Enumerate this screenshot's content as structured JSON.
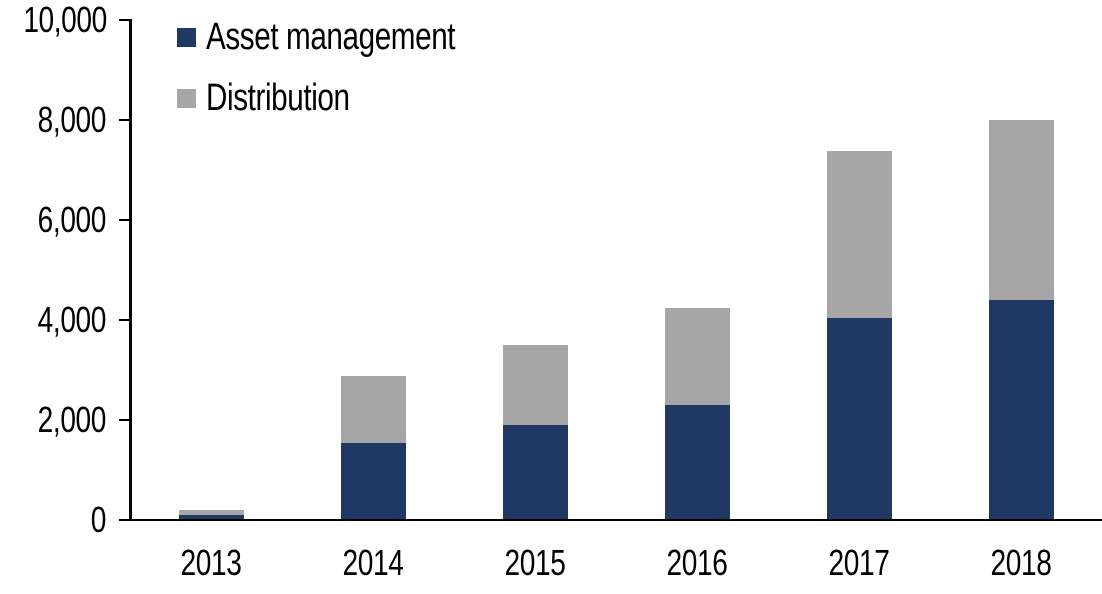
{
  "chart_data": {
    "type": "bar",
    "stacked": true,
    "title": "",
    "xlabel": "",
    "ylabel": "",
    "categories": [
      "2013",
      "2014",
      "2015",
      "2016",
      "2017",
      "2018"
    ],
    "series": [
      {
        "name": "Asset management",
        "color": "#1F3864",
        "values": [
          100,
          1550,
          1900,
          2300,
          4050,
          4400
        ]
      },
      {
        "name": "Distribution",
        "color": "#A6A6A6",
        "values": [
          100,
          1340,
          1600,
          1950,
          3330,
          3600
        ]
      }
    ],
    "ylim": [
      0,
      10000
    ],
    "ytick_interval": 2000,
    "ytick_labels": [
      "0",
      "2,000",
      "4,000",
      "6,000",
      "8,000",
      "10,000"
    ],
    "grid": false,
    "legend_position": "top-left",
    "axis_color": "#000000",
    "background_color": "#FFFFFF"
  }
}
